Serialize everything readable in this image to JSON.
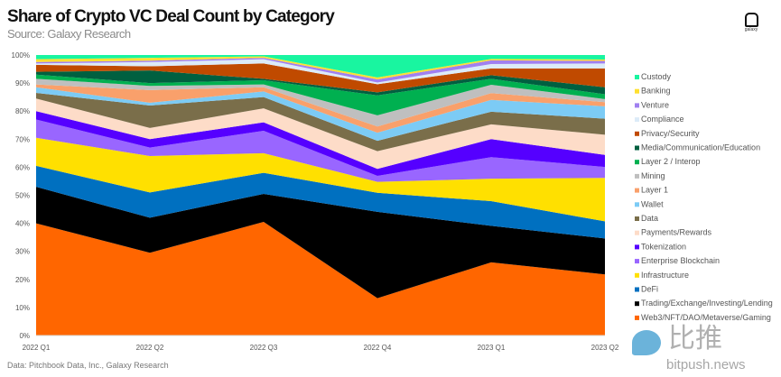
{
  "header": {
    "title": "Share of Crypto VC Deal Count by Category",
    "subtitle": "Source: Galaxy Research",
    "logo_text": "galaxy"
  },
  "footer": {
    "source": "Data: Pitchbook Data, Inc., Galaxy Research"
  },
  "watermark": {
    "cn": "比推",
    "url": "bitpush.news"
  },
  "chart_data": {
    "type": "area",
    "stacked": true,
    "normalized": true,
    "title": "Share of Crypto VC Deal Count by Category",
    "subtitle": "Source: Galaxy Research",
    "categories": [
      "2022 Q1",
      "2022 Q2",
      "2022 Q3",
      "2022 Q4",
      "2023 Q1",
      "2023 Q2"
    ],
    "yticks": [
      "0%",
      "10%",
      "20%",
      "30%",
      "40%",
      "50%",
      "60%",
      "70%",
      "80%",
      "90%",
      "100%"
    ],
    "ylim": [
      0,
      100
    ],
    "legend_position": "right",
    "grid": false,
    "series": [
      {
        "name": "Web3/NFT/DAO/Metaverse/Gaming",
        "color": "#FF6600",
        "values": [
          40,
          29.5,
          40.5,
          13.3,
          26.1,
          21.8
        ]
      },
      {
        "name": "Trading/Exchange/Investing/Lending",
        "color": "#000000",
        "values": [
          13,
          12.5,
          10,
          30.8,
          13,
          12.8
        ]
      },
      {
        "name": "DeFi",
        "color": "#0070C0",
        "values": [
          7.5,
          9,
          7.5,
          6.8,
          8.8,
          6.1
        ]
      },
      {
        "name": "Infrastructure",
        "color": "#FFE000",
        "values": [
          10,
          13,
          7,
          3.9,
          8,
          15.5
        ]
      },
      {
        "name": "Enterprise Blockchain",
        "color": "#9966FF",
        "values": [
          6.5,
          3,
          8,
          2.1,
          7.7,
          3.9
        ]
      },
      {
        "name": "Tokenization",
        "color": "#5500FF",
        "values": [
          3,
          3,
          3,
          2.5,
          6.4,
          4.3
        ]
      },
      {
        "name": "Payments/Rewards",
        "color": "#FDDCC8",
        "values": [
          4.5,
          4,
          5,
          6.3,
          5.3,
          7.2
        ]
      },
      {
        "name": "Data",
        "color": "#7A6E4A",
        "values": [
          2,
          8,
          4,
          3.7,
          4.5,
          5.7
        ]
      },
      {
        "name": "Wallet",
        "color": "#7CCBF5",
        "values": [
          2,
          1,
          2,
          2.9,
          4.2,
          4.4
        ]
      },
      {
        "name": "Layer 1",
        "color": "#F9A06B",
        "values": [
          1,
          4.5,
          1.5,
          2.2,
          2.4,
          1.5
        ]
      },
      {
        "name": "Mining",
        "color": "#BFBFBF",
        "values": [
          2,
          1.5,
          1,
          4,
          3,
          1.1
        ]
      },
      {
        "name": "Layer 2 / Interop",
        "color": "#00B050",
        "values": [
          1.5,
          1,
          1.5,
          7.1,
          2.1,
          1.7
        ]
      },
      {
        "name": "Media/Communication/Education",
        "color": "#006040",
        "values": [
          1,
          4.5,
          0.5,
          1.1,
          1.3,
          2.5
        ]
      },
      {
        "name": "Privacy/Security",
        "color": "#C04A00",
        "values": [
          2.5,
          1.5,
          5.5,
          2.9,
          2.4,
          6.7
        ]
      },
      {
        "name": "Compliance",
        "color": "#DCEBF8",
        "values": [
          0.5,
          1.5,
          1.5,
          0.6,
          1.6,
          1.8
        ]
      },
      {
        "name": "Venture",
        "color": "#A080F0",
        "values": [
          0.5,
          0.5,
          0.5,
          1.1,
          1.3,
          0.9
        ]
      },
      {
        "name": "Banking",
        "color": "#FFE030",
        "values": [
          1,
          1,
          0.5,
          0.7,
          0.5,
          0.5
        ]
      },
      {
        "name": "Custody",
        "color": "#19F5A0",
        "values": [
          1.5,
          1,
          0.5,
          8,
          1.4,
          1.6
        ]
      }
    ]
  }
}
